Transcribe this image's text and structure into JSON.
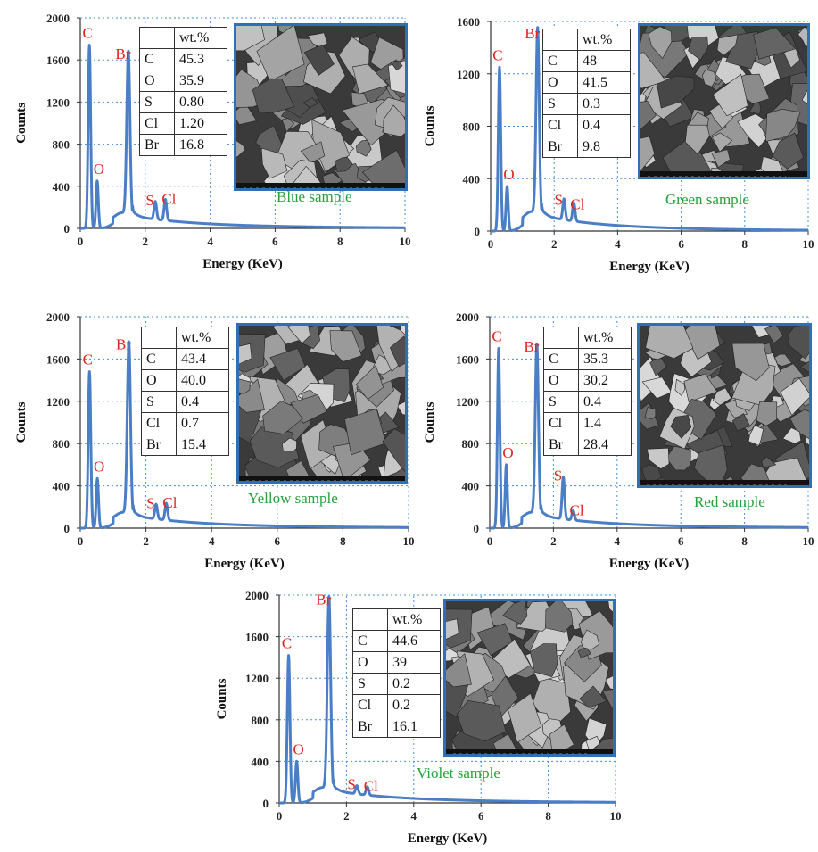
{
  "chart_data": [
    {
      "type": "line",
      "sample_label": "Blue sample",
      "xlabel": "Energy (KeV)",
      "ylabel": "Counts",
      "xlim": [
        0,
        10
      ],
      "ylim": [
        0,
        2000
      ],
      "x_ticks": [
        0,
        2,
        4,
        6,
        8,
        10
      ],
      "y_ticks": [
        0,
        400,
        800,
        1200,
        1600,
        2000
      ],
      "color": "#4a7ec6",
      "peaks": [
        {
          "label": "C",
          "x": 0.28,
          "y": 1740
        },
        {
          "label": "O",
          "x": 0.52,
          "y": 450
        },
        {
          "label": "Br",
          "x": 1.48,
          "y": 1560
        },
        {
          "label": "S",
          "x": 2.31,
          "y": 170
        },
        {
          "label": "Cl",
          "x": 2.62,
          "y": 200
        }
      ],
      "table": {
        "header": "wt.%",
        "rows": [
          [
            "C",
            "45.3"
          ],
          [
            "O",
            "35.9"
          ],
          [
            "S",
            "0.80"
          ],
          [
            "Cl",
            "1.20"
          ],
          [
            "Br",
            "16.8"
          ]
        ]
      }
    },
    {
      "type": "line",
      "sample_label": "Green sample",
      "xlabel": "Energy (KeV)",
      "ylabel": "Counts",
      "xlim": [
        0,
        10
      ],
      "ylim": [
        0,
        1600
      ],
      "x_ticks": [
        0,
        2,
        4,
        6,
        8,
        10
      ],
      "y_ticks": [
        0,
        400,
        800,
        1200,
        1600
      ],
      "color": "#4a7ec6",
      "peaks": [
        {
          "label": "C",
          "x": 0.28,
          "y": 1250
        },
        {
          "label": "O",
          "x": 0.52,
          "y": 340
        },
        {
          "label": "Br",
          "x": 1.48,
          "y": 1430
        },
        {
          "label": "S",
          "x": 2.31,
          "y": 160
        },
        {
          "label": "Cl",
          "x": 2.62,
          "y": 140
        }
      ],
      "table": {
        "header": "wt.%",
        "rows": [
          [
            "C",
            "48"
          ],
          [
            "O",
            "41.5"
          ],
          [
            "S",
            "0.3"
          ],
          [
            "Cl",
            "0.4"
          ],
          [
            "Br",
            "9.8"
          ]
        ]
      }
    },
    {
      "type": "line",
      "sample_label": "Yellow sample",
      "xlabel": "Energy (KeV)",
      "ylabel": "Counts",
      "xlim": [
        0,
        10
      ],
      "ylim": [
        0,
        2000
      ],
      "x_ticks": [
        0,
        2,
        4,
        6,
        8,
        10
      ],
      "y_ticks": [
        0,
        400,
        800,
        1200,
        1600,
        2000
      ],
      "color": "#4a7ec6",
      "peaks": [
        {
          "label": "C",
          "x": 0.28,
          "y": 1480
        },
        {
          "label": "O",
          "x": 0.52,
          "y": 470
        },
        {
          "label": "Br",
          "x": 1.48,
          "y": 1640
        },
        {
          "label": "S",
          "x": 2.31,
          "y": 140
        },
        {
          "label": "Cl",
          "x": 2.62,
          "y": 160
        }
      ],
      "table": {
        "header": "wt.%",
        "rows": [
          [
            "C",
            "43.4"
          ],
          [
            "O",
            "40.0"
          ],
          [
            "S",
            "0.4"
          ],
          [
            "Cl",
            "0.7"
          ],
          [
            "Br",
            "15.4"
          ]
        ]
      }
    },
    {
      "type": "line",
      "sample_label": "Red sample",
      "xlabel": "Energy (KeV)",
      "ylabel": "Counts",
      "xlim": [
        0,
        10
      ],
      "ylim": [
        0,
        2000
      ],
      "x_ticks": [
        0,
        2,
        4,
        6,
        8,
        10
      ],
      "y_ticks": [
        0,
        400,
        800,
        1200,
        1600,
        2000
      ],
      "color": "#4a7ec6",
      "peaks": [
        {
          "label": "C",
          "x": 0.28,
          "y": 1700
        },
        {
          "label": "O",
          "x": 0.52,
          "y": 600
        },
        {
          "label": "Br",
          "x": 1.48,
          "y": 1620
        },
        {
          "label": "S",
          "x": 2.31,
          "y": 400
        },
        {
          "label": "Cl",
          "x": 2.62,
          "y": 90
        }
      ],
      "table": {
        "header": "wt.%",
        "rows": [
          [
            "C",
            "35.3"
          ],
          [
            "O",
            "30.2"
          ],
          [
            "S",
            "0.4"
          ],
          [
            "Cl",
            "1.4"
          ],
          [
            "Br",
            "28.4"
          ]
        ]
      }
    },
    {
      "type": "line",
      "sample_label": "Violet sample",
      "xlabel": "Energy (KeV)",
      "ylabel": "Counts",
      "xlim": [
        0,
        10
      ],
      "ylim": [
        0,
        2000
      ],
      "x_ticks": [
        0,
        2,
        4,
        6,
        8,
        10
      ],
      "y_ticks": [
        0,
        400,
        800,
        1200,
        1600,
        2000
      ],
      "color": "#4a7ec6",
      "peaks": [
        {
          "label": "C",
          "x": 0.28,
          "y": 1420
        },
        {
          "label": "O",
          "x": 0.52,
          "y": 400
        },
        {
          "label": "Br",
          "x": 1.48,
          "y": 1860
        },
        {
          "label": "S",
          "x": 2.31,
          "y": 80
        },
        {
          "label": "Cl",
          "x": 2.62,
          "y": 80
        }
      ],
      "table": {
        "header": "wt.%",
        "rows": [
          [
            "C",
            "44.6"
          ],
          [
            "O",
            "39"
          ],
          [
            "S",
            "0.2"
          ],
          [
            "Cl",
            "0.2"
          ],
          [
            "Br",
            "16.1"
          ]
        ]
      }
    }
  ]
}
